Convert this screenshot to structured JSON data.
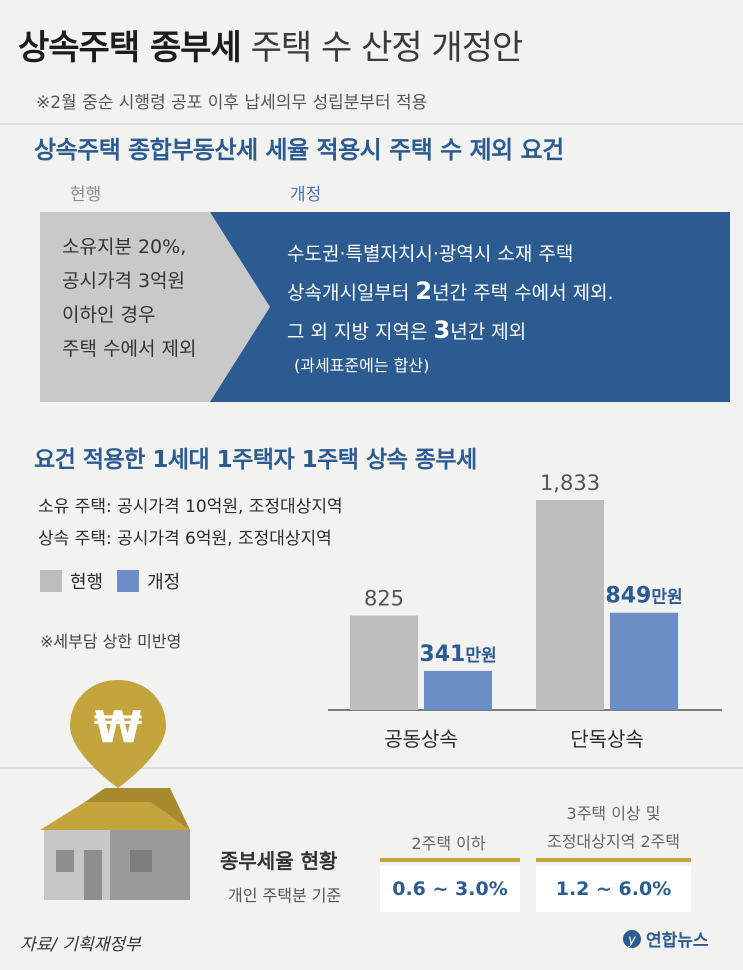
{
  "header": {
    "title_bold": "상속주택 종부세",
    "title_light": "주택 수 산정 개정안",
    "subtitle": "※2월 중순 시행령 공포 이후 납세의무 성립분부터 적용"
  },
  "section1": {
    "title": "상속주택 종합부동산세 세율 적용시 주택 수 제외 요건",
    "current_label": "현행",
    "revised_label": "개정",
    "current_lines": [
      "소유지분 20%,",
      "공시가격 3억원",
      "이하인 경우",
      "주택 수에서 제외"
    ],
    "revised_line1": "수도권·특별자치시·광역시 소재 주택",
    "revised_line2_a": "상속개시일부터 ",
    "revised_line2_b": "2",
    "revised_line2_c": "년간 주택 수에서 제외.",
    "revised_line3_a": "그 외 지방 지역은 ",
    "revised_line3_b": "3",
    "revised_line3_c": "년간 제외",
    "revised_note": "(과세표준에는 합산)"
  },
  "section2": {
    "title": "요건 적용한 1세대 1주택자 1주택 상속 종부세",
    "info1": "소유 주택: 공시가격 10억원, 조정대상지역",
    "info2": "상속 주택: 공시가격 6억원, 조정대상지역",
    "legend_current": "현행",
    "legend_revised": "개정",
    "note": "※세부담 상한 미반영"
  },
  "chart_data": {
    "type": "bar",
    "categories": [
      "공동상속",
      "단독상속"
    ],
    "unit": "만원",
    "series": [
      {
        "name": "현행",
        "values": [
          825,
          1833
        ],
        "labels": [
          "825",
          "1,833"
        ],
        "color": "#bdbdbd"
      },
      {
        "name": "개정",
        "values": [
          341,
          849
        ],
        "labels": [
          "341",
          "849"
        ],
        "color": "#6b8fc4"
      }
    ],
    "ylim": [
      0,
      1833
    ]
  },
  "rates": {
    "label": "종부세율 현황",
    "sub": "개인 주택분 기준",
    "col1_head": "2주택 이하",
    "col2_head_line1": "3주택 이상 및",
    "col2_head_line2": "조정대상지역 2주택",
    "col1_value": "0.6 ~ 3.0%",
    "col2_value": "1.2 ~ 6.0%"
  },
  "footer": {
    "source": "자료/ 기획재정부",
    "logo": "연합뉴스"
  },
  "colors": {
    "accent_blue": "#2c5b92",
    "revised_blue": "#6b8fc4",
    "current_gray": "#bdbdbd",
    "gold": "#c4a43c"
  },
  "icons": {
    "pin": "won-pin-icon",
    "house": "house-icon"
  }
}
